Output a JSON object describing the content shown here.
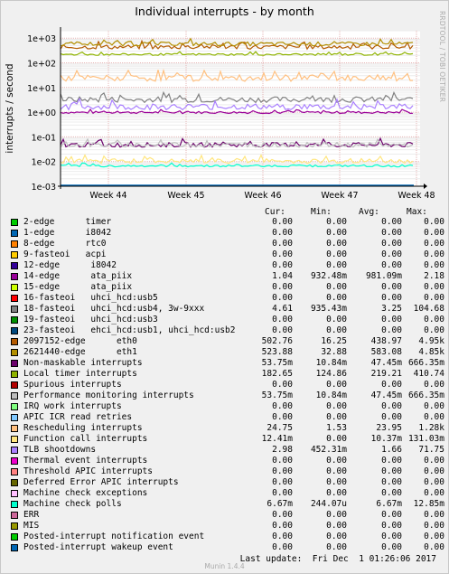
{
  "chart_data": {
    "type": "line",
    "title": "Individual interrupts - by month",
    "ylabel": "interrupts / second",
    "yscale": "log",
    "ylim": [
      0.001,
      2000
    ],
    "yticks": [
      {
        "value": 1000,
        "label": "1e+03"
      },
      {
        "value": 100,
        "label": "1e+02"
      },
      {
        "value": 10,
        "label": "1e+01"
      },
      {
        "value": 1,
        "label": "1e+00"
      },
      {
        "value": 0.1,
        "label": "1e-01"
      },
      {
        "value": 0.01,
        "label": "1e-02"
      },
      {
        "value": 0.001,
        "label": "1e-03"
      }
    ],
    "xticks": [
      "Week 44",
      "Week 45",
      "Week 46",
      "Week 47",
      "Week 48"
    ],
    "grid": true,
    "side_label": "RRDTOOL / TOBI OETIKER",
    "series": [
      {
        "name": "2-edge      timer",
        "color": "#00cc00",
        "cur": "0.00",
        "min": "0.00",
        "avg": "0.00",
        "max": "0.00"
      },
      {
        "name": "1-edge      i8042",
        "color": "#0066b3",
        "cur": "0.00",
        "min": "0.00",
        "avg": "0.00",
        "max": "0.00"
      },
      {
        "name": "8-edge      rtc0",
        "color": "#ff8000",
        "cur": "0.00",
        "min": "0.00",
        "avg": "0.00",
        "max": "0.00"
      },
      {
        "name": "9-fasteoi   acpi",
        "color": "#ffcc00",
        "cur": "0.00",
        "min": "0.00",
        "avg": "0.00",
        "max": "0.00"
      },
      {
        "name": "12-edge      i8042",
        "color": "#330099",
        "cur": "0.00",
        "min": "0.00",
        "avg": "0.00",
        "max": "0.00"
      },
      {
        "name": "14-edge      ata_piix",
        "color": "#990099",
        "cur": "1.04",
        "min": "932.48m",
        "avg": "981.09m",
        "max": "2.18"
      },
      {
        "name": "15-edge      ata_piix",
        "color": "#ccff00",
        "cur": "0.00",
        "min": "0.00",
        "avg": "0.00",
        "max": "0.00"
      },
      {
        "name": "16-fasteoi   uhci_hcd:usb5",
        "color": "#ff0000",
        "cur": "0.00",
        "min": "0.00",
        "avg": "0.00",
        "max": "0.00"
      },
      {
        "name": "18-fasteoi   uhci_hcd:usb4, 3w-9xxx",
        "color": "#808080",
        "cur": "4.61",
        "min": "935.43m",
        "avg": "3.25",
        "max": "104.68"
      },
      {
        "name": "19-fasteoi   uhci_hcd:usb3",
        "color": "#008f00",
        "cur": "0.00",
        "min": "0.00",
        "avg": "0.00",
        "max": "0.00"
      },
      {
        "name": "23-fasteoi   ehci_hcd:usb1, uhci_hcd:usb2",
        "color": "#00487d",
        "cur": "0.00",
        "min": "0.00",
        "avg": "0.00",
        "max": "0.00"
      },
      {
        "name": "2097152-edge      eth0",
        "color": "#b35a00",
        "cur": "502.76",
        "min": "16.25",
        "avg": "438.97",
        "max": "4.95k"
      },
      {
        "name": "2621440-edge      eth1",
        "color": "#b38f00",
        "cur": "523.88",
        "min": "32.88",
        "avg": "583.08",
        "max": "4.85k"
      },
      {
        "name": "Non-maskable interrupts",
        "color": "#6b006b",
        "cur": "53.75m",
        "min": "10.84m",
        "avg": "47.45m",
        "max": "666.35m"
      },
      {
        "name": "Local timer interrupts",
        "color": "#8fb300",
        "cur": "182.65",
        "min": "124.86",
        "avg": "219.21",
        "max": "410.74"
      },
      {
        "name": "Spurious interrupts",
        "color": "#b30000",
        "cur": "0.00",
        "min": "0.00",
        "avg": "0.00",
        "max": "0.00"
      },
      {
        "name": "Performance monitoring interrupts",
        "color": "#bebebe",
        "cur": "53.75m",
        "min": "10.84m",
        "avg": "47.45m",
        "max": "666.35m"
      },
      {
        "name": "IRQ work interrupts",
        "color": "#80ff80",
        "cur": "0.00",
        "min": "0.00",
        "avg": "0.00",
        "max": "0.00"
      },
      {
        "name": "APIC ICR read retries",
        "color": "#80c9ff",
        "cur": "0.00",
        "min": "0.00",
        "avg": "0.00",
        "max": "0.00"
      },
      {
        "name": "Rescheduling interrupts",
        "color": "#ffc080",
        "cur": "24.75",
        "min": "1.53",
        "avg": "23.95",
        "max": "1.28k"
      },
      {
        "name": "Function call interrupts",
        "color": "#ffe680",
        "cur": "12.41m",
        "min": "0.00",
        "avg": "10.37m",
        "max": "131.03m"
      },
      {
        "name": "TLB shootdowns",
        "color": "#aa80ff",
        "cur": "2.98",
        "min": "452.31m",
        "avg": "1.66",
        "max": "71.75"
      },
      {
        "name": "Thermal event interrupts",
        "color": "#ee00cc",
        "cur": "0.00",
        "min": "0.00",
        "avg": "0.00",
        "max": "0.00"
      },
      {
        "name": "Threshold APIC interrupts",
        "color": "#ff8080",
        "cur": "0.00",
        "min": "0.00",
        "avg": "0.00",
        "max": "0.00"
      },
      {
        "name": "Deferred Error APIC interrupts",
        "color": "#666600",
        "cur": "0.00",
        "min": "0.00",
        "avg": "0.00",
        "max": "0.00"
      },
      {
        "name": "Machine check exceptions",
        "color": "#ffbfff",
        "cur": "0.00",
        "min": "0.00",
        "avg": "0.00",
        "max": "0.00"
      },
      {
        "name": "Machine check polls",
        "color": "#00ffcc",
        "cur": "6.67m",
        "min": "244.07u",
        "avg": "6.67m",
        "max": "12.85m"
      },
      {
        "name": "ERR",
        "color": "#cc6699",
        "cur": "0.00",
        "min": "0.00",
        "avg": "0.00",
        "max": "0.00"
      },
      {
        "name": "MIS",
        "color": "#999900",
        "cur": "0.00",
        "min": "0.00",
        "avg": "0.00",
        "max": "0.00"
      },
      {
        "name": "Posted-interrupt notification event",
        "color": "#00cc00",
        "cur": "0.00",
        "min": "0.00",
        "avg": "0.00",
        "max": "0.00"
      },
      {
        "name": "Posted-interrupt wakeup event",
        "color": "#0066b3",
        "cur": "0.00",
        "min": "0.00",
        "avg": "0.00",
        "max": "0.00"
      }
    ]
  },
  "headers": {
    "cur": "Cur:",
    "min": "Min:",
    "avg": "Avg:",
    "max": "Max:"
  },
  "footer": {
    "last_update": "Last update:  Fri Dec  1 01:26:06 2017",
    "munin": "Munin 1.4.4"
  }
}
